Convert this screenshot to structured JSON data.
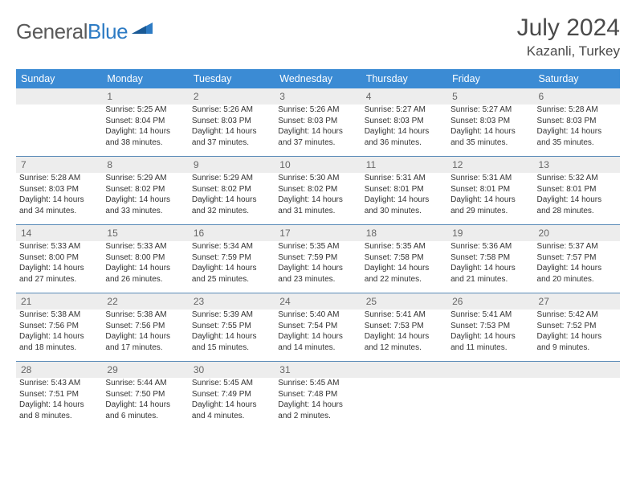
{
  "brand": {
    "part1": "General",
    "part2": "Blue"
  },
  "title": "July 2024",
  "location": "Kazanli, Turkey",
  "colors": {
    "header_bg": "#3b8bd4",
    "header_text": "#ffffff",
    "daynum_bg": "#ededed",
    "row_border": "#5a8bb8",
    "logo_gray": "#5a5a5a",
    "logo_blue": "#2d7bc4"
  },
  "day_names": [
    "Sunday",
    "Monday",
    "Tuesday",
    "Wednesday",
    "Thursday",
    "Friday",
    "Saturday"
  ],
  "weeks": [
    {
      "nums": [
        "",
        "1",
        "2",
        "3",
        "4",
        "5",
        "6"
      ],
      "cells": [
        [],
        [
          "Sunrise: 5:25 AM",
          "Sunset: 8:04 PM",
          "Daylight: 14 hours",
          "and 38 minutes."
        ],
        [
          "Sunrise: 5:26 AM",
          "Sunset: 8:03 PM",
          "Daylight: 14 hours",
          "and 37 minutes."
        ],
        [
          "Sunrise: 5:26 AM",
          "Sunset: 8:03 PM",
          "Daylight: 14 hours",
          "and 37 minutes."
        ],
        [
          "Sunrise: 5:27 AM",
          "Sunset: 8:03 PM",
          "Daylight: 14 hours",
          "and 36 minutes."
        ],
        [
          "Sunrise: 5:27 AM",
          "Sunset: 8:03 PM",
          "Daylight: 14 hours",
          "and 35 minutes."
        ],
        [
          "Sunrise: 5:28 AM",
          "Sunset: 8:03 PM",
          "Daylight: 14 hours",
          "and 35 minutes."
        ]
      ]
    },
    {
      "nums": [
        "7",
        "8",
        "9",
        "10",
        "11",
        "12",
        "13"
      ],
      "cells": [
        [
          "Sunrise: 5:28 AM",
          "Sunset: 8:03 PM",
          "Daylight: 14 hours",
          "and 34 minutes."
        ],
        [
          "Sunrise: 5:29 AM",
          "Sunset: 8:02 PM",
          "Daylight: 14 hours",
          "and 33 minutes."
        ],
        [
          "Sunrise: 5:29 AM",
          "Sunset: 8:02 PM",
          "Daylight: 14 hours",
          "and 32 minutes."
        ],
        [
          "Sunrise: 5:30 AM",
          "Sunset: 8:02 PM",
          "Daylight: 14 hours",
          "and 31 minutes."
        ],
        [
          "Sunrise: 5:31 AM",
          "Sunset: 8:01 PM",
          "Daylight: 14 hours",
          "and 30 minutes."
        ],
        [
          "Sunrise: 5:31 AM",
          "Sunset: 8:01 PM",
          "Daylight: 14 hours",
          "and 29 minutes."
        ],
        [
          "Sunrise: 5:32 AM",
          "Sunset: 8:01 PM",
          "Daylight: 14 hours",
          "and 28 minutes."
        ]
      ]
    },
    {
      "nums": [
        "14",
        "15",
        "16",
        "17",
        "18",
        "19",
        "20"
      ],
      "cells": [
        [
          "Sunrise: 5:33 AM",
          "Sunset: 8:00 PM",
          "Daylight: 14 hours",
          "and 27 minutes."
        ],
        [
          "Sunrise: 5:33 AM",
          "Sunset: 8:00 PM",
          "Daylight: 14 hours",
          "and 26 minutes."
        ],
        [
          "Sunrise: 5:34 AM",
          "Sunset: 7:59 PM",
          "Daylight: 14 hours",
          "and 25 minutes."
        ],
        [
          "Sunrise: 5:35 AM",
          "Sunset: 7:59 PM",
          "Daylight: 14 hours",
          "and 23 minutes."
        ],
        [
          "Sunrise: 5:35 AM",
          "Sunset: 7:58 PM",
          "Daylight: 14 hours",
          "and 22 minutes."
        ],
        [
          "Sunrise: 5:36 AM",
          "Sunset: 7:58 PM",
          "Daylight: 14 hours",
          "and 21 minutes."
        ],
        [
          "Sunrise: 5:37 AM",
          "Sunset: 7:57 PM",
          "Daylight: 14 hours",
          "and 20 minutes."
        ]
      ]
    },
    {
      "nums": [
        "21",
        "22",
        "23",
        "24",
        "25",
        "26",
        "27"
      ],
      "cells": [
        [
          "Sunrise: 5:38 AM",
          "Sunset: 7:56 PM",
          "Daylight: 14 hours",
          "and 18 minutes."
        ],
        [
          "Sunrise: 5:38 AM",
          "Sunset: 7:56 PM",
          "Daylight: 14 hours",
          "and 17 minutes."
        ],
        [
          "Sunrise: 5:39 AM",
          "Sunset: 7:55 PM",
          "Daylight: 14 hours",
          "and 15 minutes."
        ],
        [
          "Sunrise: 5:40 AM",
          "Sunset: 7:54 PM",
          "Daylight: 14 hours",
          "and 14 minutes."
        ],
        [
          "Sunrise: 5:41 AM",
          "Sunset: 7:53 PM",
          "Daylight: 14 hours",
          "and 12 minutes."
        ],
        [
          "Sunrise: 5:41 AM",
          "Sunset: 7:53 PM",
          "Daylight: 14 hours",
          "and 11 minutes."
        ],
        [
          "Sunrise: 5:42 AM",
          "Sunset: 7:52 PM",
          "Daylight: 14 hours",
          "and 9 minutes."
        ]
      ]
    },
    {
      "nums": [
        "28",
        "29",
        "30",
        "31",
        "",
        "",
        ""
      ],
      "cells": [
        [
          "Sunrise: 5:43 AM",
          "Sunset: 7:51 PM",
          "Daylight: 14 hours",
          "and 8 minutes."
        ],
        [
          "Sunrise: 5:44 AM",
          "Sunset: 7:50 PM",
          "Daylight: 14 hours",
          "and 6 minutes."
        ],
        [
          "Sunrise: 5:45 AM",
          "Sunset: 7:49 PM",
          "Daylight: 14 hours",
          "and 4 minutes."
        ],
        [
          "Sunrise: 5:45 AM",
          "Sunset: 7:48 PM",
          "Daylight: 14 hours",
          "and 2 minutes."
        ],
        [],
        [],
        []
      ]
    }
  ]
}
